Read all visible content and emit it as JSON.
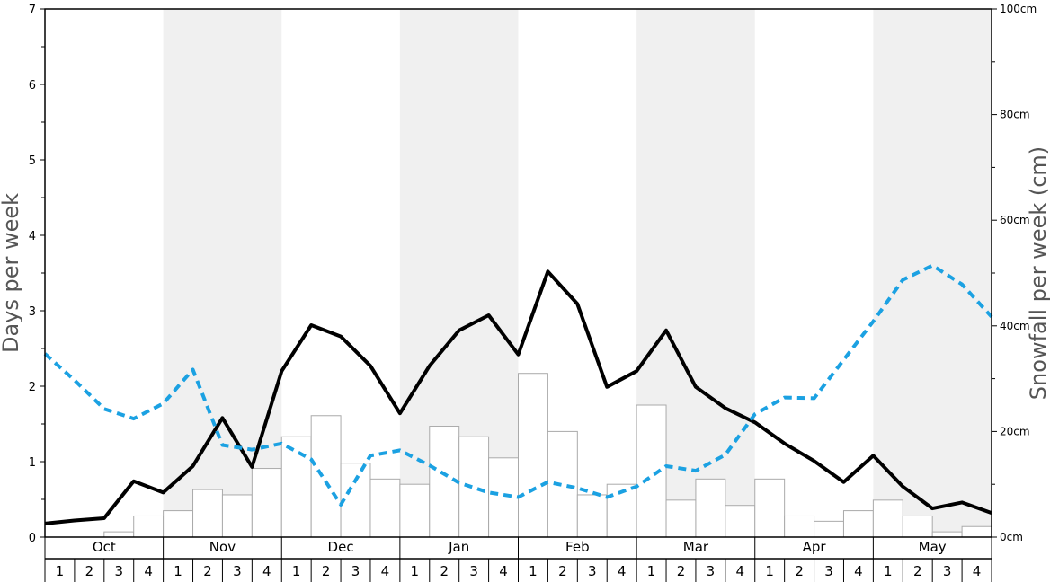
{
  "chart_data": {
    "type": "bar",
    "y_left": {
      "label": "Days per week",
      "ylim": [
        0,
        7
      ],
      "ticks": [
        "0",
        "1",
        "2",
        "3",
        "4",
        "5",
        "6",
        "7"
      ]
    },
    "y_right": {
      "label": "Snowfall per week (cm)",
      "ylim": [
        0,
        100
      ],
      "ticks": [
        "0cm",
        "20cm",
        "40cm",
        "60cm",
        "80cm",
        "100cm"
      ]
    },
    "months": [
      "Oct",
      "Nov",
      "Dec",
      "Jan",
      "Feb",
      "Mar",
      "Apr",
      "May"
    ],
    "weeks": [
      "1",
      "2",
      "3",
      "4"
    ],
    "month_shading": [
      "white",
      "gray",
      "white",
      "gray",
      "white",
      "gray",
      "white",
      "gray"
    ],
    "colors": {
      "shade": "#f0f0f0",
      "bar_fill": "#ffffff",
      "bar_stroke": "#aaaaaa",
      "solid_line": "#000000",
      "dashed_line": "#1ba1e2"
    },
    "series": [
      {
        "type": "bar",
        "axis": "right",
        "values": [
          0,
          0,
          1,
          4,
          5,
          9,
          8,
          13,
          19,
          23,
          14,
          11,
          10,
          21,
          19,
          15,
          31,
          20,
          8,
          10,
          25,
          7,
          11,
          6,
          11,
          4,
          3,
          5,
          7,
          4,
          1,
          2
        ]
      },
      {
        "type": "line",
        "style": "solid",
        "axis": "left",
        "values": [
          0.18,
          0.22,
          0.25,
          0.74,
          0.59,
          0.94,
          1.58,
          0.93,
          2.2,
          2.81,
          2.66,
          2.27,
          1.64,
          2.27,
          2.74,
          2.94,
          2.42,
          3.52,
          3.09,
          1.99,
          2.2,
          2.74,
          1.99,
          1.71,
          1.52,
          1.24,
          1.01,
          0.73,
          1.08,
          0.67,
          0.38,
          0.46,
          0.32
        ]
      },
      {
        "type": "line",
        "style": "dashed",
        "axis": "left",
        "values": [
          2.43,
          2.08,
          1.7,
          1.57,
          1.77,
          2.22,
          1.22,
          1.16,
          1.24,
          1.03,
          0.43,
          1.08,
          1.15,
          0.95,
          0.72,
          0.59,
          0.53,
          0.73,
          0.65,
          0.53,
          0.67,
          0.94,
          0.88,
          1.09,
          1.63,
          1.85,
          1.84,
          2.35,
          2.86,
          3.41,
          3.6,
          3.35,
          2.92
        ]
      }
    ]
  }
}
